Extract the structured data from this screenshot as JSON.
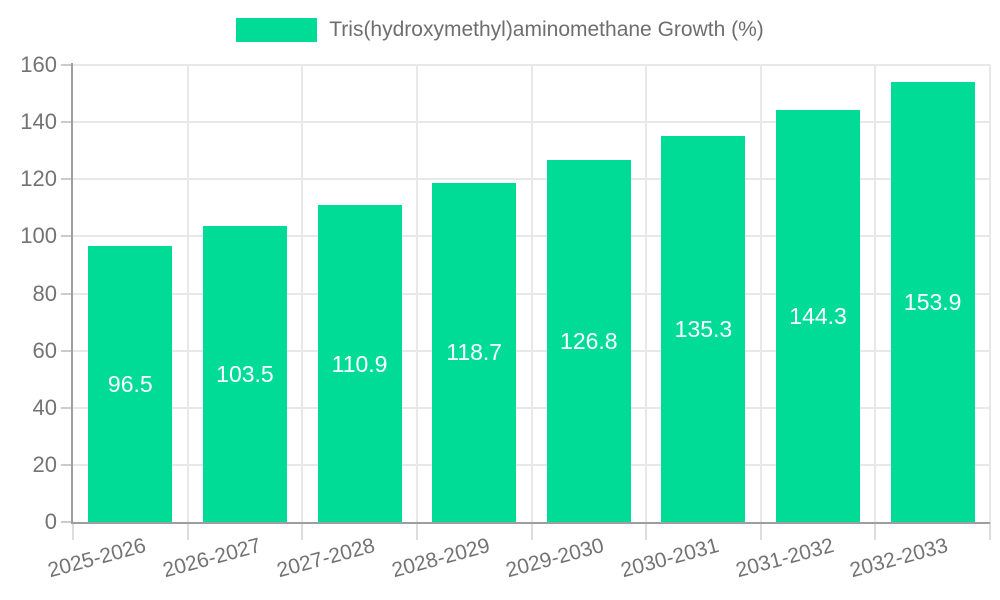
{
  "chart_data": {
    "type": "bar",
    "title": "",
    "legend": {
      "position": "top",
      "label": "Tris(hydroxymethyl)aminomethane Growth (%)"
    },
    "categories": [
      "2025-2026",
      "2026-2027",
      "2027-2028",
      "2028-2029",
      "2029-2030",
      "2030-2031",
      "2031-2032",
      "2032-2033"
    ],
    "series": [
      {
        "name": "Tris(hydroxymethyl)aminomethane Growth (%)",
        "values": [
          96.5,
          103.5,
          110.9,
          118.7,
          126.8,
          135.3,
          144.3,
          153.9
        ]
      }
    ],
    "data_labels_visible": true,
    "xlabel": "",
    "ylabel": "",
    "ylim": [
      0,
      160
    ],
    "ytick_step": 20,
    "ytick_labels": [
      "0",
      "20",
      "40",
      "60",
      "80",
      "100",
      "120",
      "140",
      "160"
    ],
    "grid": true,
    "x_label_rotation_deg": -15
  },
  "colors": {
    "bar": "#00DC96",
    "axis": "#9e9e9e",
    "grid": "#e8e8e8",
    "tick_y": "#cccccc",
    "tick_x": "#dcdcdc",
    "text": "#737373",
    "bar_label": "#ffffff",
    "background": "#ffffff"
  }
}
